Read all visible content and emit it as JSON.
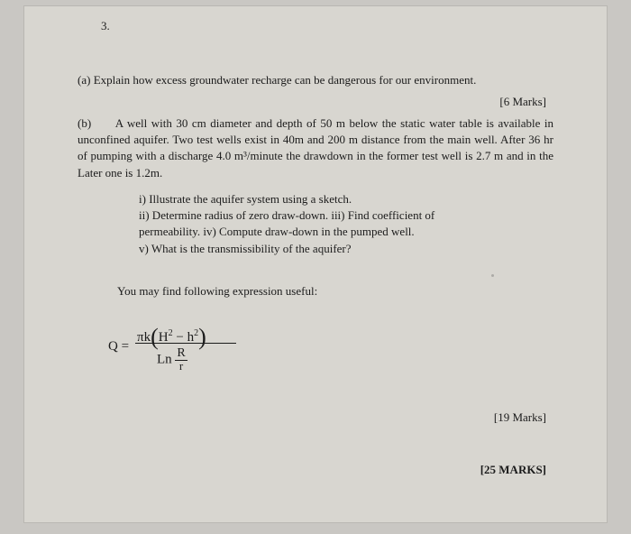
{
  "question_number": "3.",
  "part_a": {
    "label": "(a)",
    "text": "Explain how excess groundwater recharge can be dangerous for our environment.",
    "marks": "[6 Marks]"
  },
  "part_b": {
    "label": "(b)",
    "text": "A well with 30 cm diameter and depth of 50 m below the static water table is available in unconfined aquifer. Two test wells exist in 40m and 200 m distance from the main well. After 36 hr of pumping with a discharge 4.0 m³/minute the drawdown in the former test well is 2.7 m and in the Later one is 1.2m.",
    "sub": {
      "i": "i)   Illustrate the aquifer system using a sketch.",
      "ii": "ii)  Determine radius of zero draw-down. iii) Find coefficient of",
      "iii": "permeability. iv) Compute draw-down in the pumped well.",
      "v": "v)  What is the transmissibility of the aquifer?"
    },
    "useful": "You may find following expression useful:",
    "formula": {
      "lhs": "Q =",
      "num_prefix": "πk",
      "H": "H",
      "minus": "−",
      "h": "h",
      "sq": "2",
      "den_ln": "Ln",
      "R": "R",
      "r": "r"
    },
    "marks": "[19 Marks]"
  },
  "total_marks": "[25 MARKS]"
}
